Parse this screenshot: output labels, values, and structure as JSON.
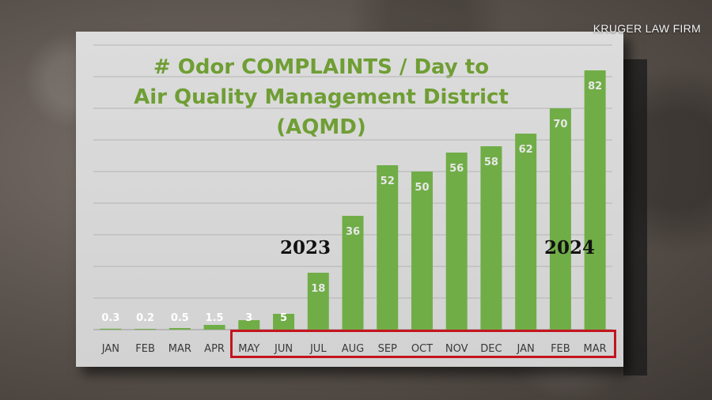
{
  "watermark": "KRUGER LAW FIRM",
  "chart_data": {
    "type": "bar",
    "title": "# Odor COMPLAINTS / Day to Air Quality Management District (AQMD)",
    "title_lines": [
      "# Odor COMPLAINTS / Day to",
      "Air Quality Management District",
      "(AQMD)"
    ],
    "categories": [
      "JAN",
      "FEB",
      "MAR",
      "APR",
      "MAY",
      "JUN",
      "JUL",
      "AUG",
      "SEP",
      "OCT",
      "NOV",
      "DEC",
      "JAN",
      "FEB",
      "MAR"
    ],
    "values": [
      0.3,
      0.2,
      0.5,
      1.5,
      3,
      5,
      18,
      36,
      52,
      50,
      56,
      58,
      62,
      70,
      82
    ],
    "data_labels": [
      "0.3",
      "0.2",
      "0.5",
      "1.5",
      "3",
      "5",
      "18",
      "36",
      "52",
      "50",
      "56",
      "58",
      "62",
      "70",
      "82"
    ],
    "ylim": [
      0,
      90
    ],
    "grid": true,
    "bar_color": "#70ad47",
    "annotations": [
      "2023",
      "2024"
    ],
    "highlight_color": "#c4141e"
  }
}
